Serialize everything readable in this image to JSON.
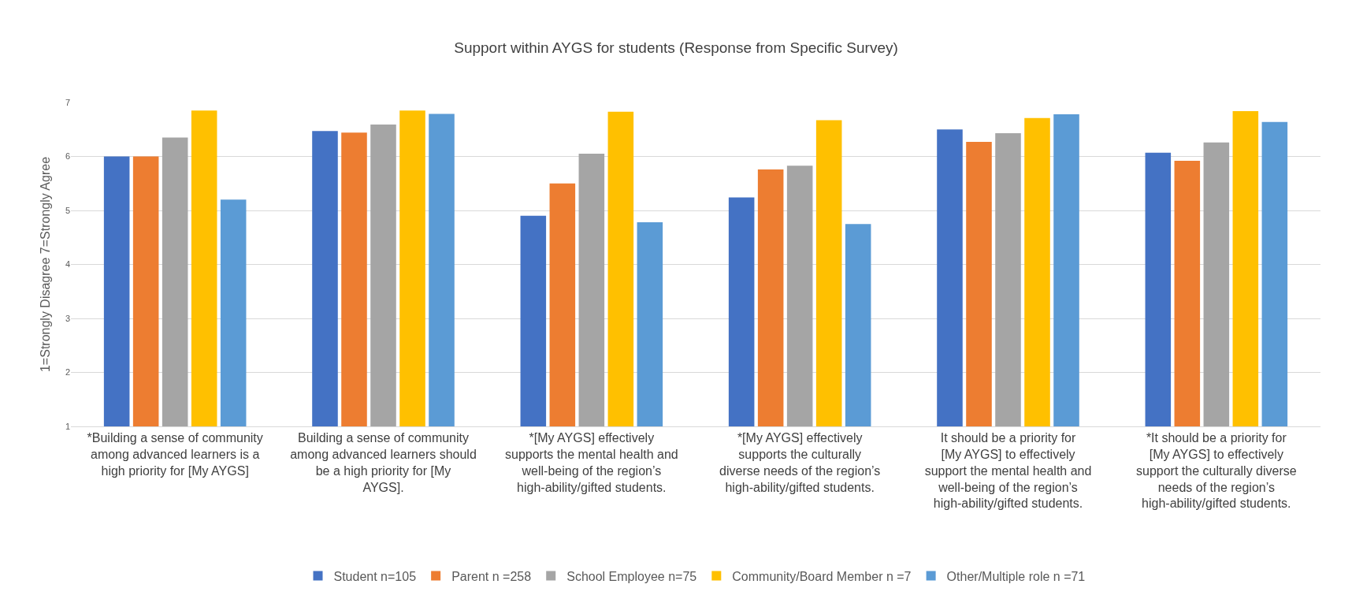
{
  "chart_data": {
    "type": "bar",
    "title": "Support within AYGS for students (Response from Specific Survey)",
    "ylabel": "1=Strongly Disagree 7=Strongly Agree",
    "categories": [
      "*Building a sense of community among advanced learners is a high priority for [My AYGS]",
      "Building a sense of community among advanced learners should be a high priority for [My AYGS].",
      "*[My AYGS] effectively supports the mental health and well-being of the region’s high-ability/gifted students.",
      "*[My AYGS] effectively supports the culturally diverse needs of the region’s high-ability/gifted students.",
      "It should be a priority for [My AYGS] to effectively support the mental health and well-being of the region’s high-ability/gifted students.",
      "*It should be a priority for [My AYGS] to effectively support the culturally diverse needs of the region’s high-ability/gifted students."
    ],
    "series": [
      {
        "name": "Student n=105",
        "color": "#4472c4",
        "values": [
          6.0,
          6.47,
          4.9,
          5.24,
          6.5,
          6.07
        ]
      },
      {
        "name": "Parent n =258",
        "color": "#ed7d31",
        "values": [
          6.0,
          6.44,
          5.5,
          5.76,
          6.27,
          5.92
        ]
      },
      {
        "name": "School Employee n=75",
        "color": "#a5a5a5",
        "values": [
          6.35,
          6.59,
          6.05,
          5.83,
          6.43,
          6.26
        ]
      },
      {
        "name": "Community/Board Member n =7",
        "color": "#ffc000",
        "values": [
          6.85,
          6.85,
          6.83,
          6.67,
          6.71,
          6.84
        ]
      },
      {
        "name": "Other/Multiple role n =71",
        "color": "#5b9bd5",
        "values": [
          5.2,
          6.79,
          4.78,
          4.75,
          6.78,
          6.64
        ]
      }
    ],
    "ylim": [
      1,
      7
    ],
    "yticks": [
      1,
      2,
      3,
      4,
      5,
      6,
      7
    ],
    "grid": "y",
    "legend": "bottom"
  }
}
